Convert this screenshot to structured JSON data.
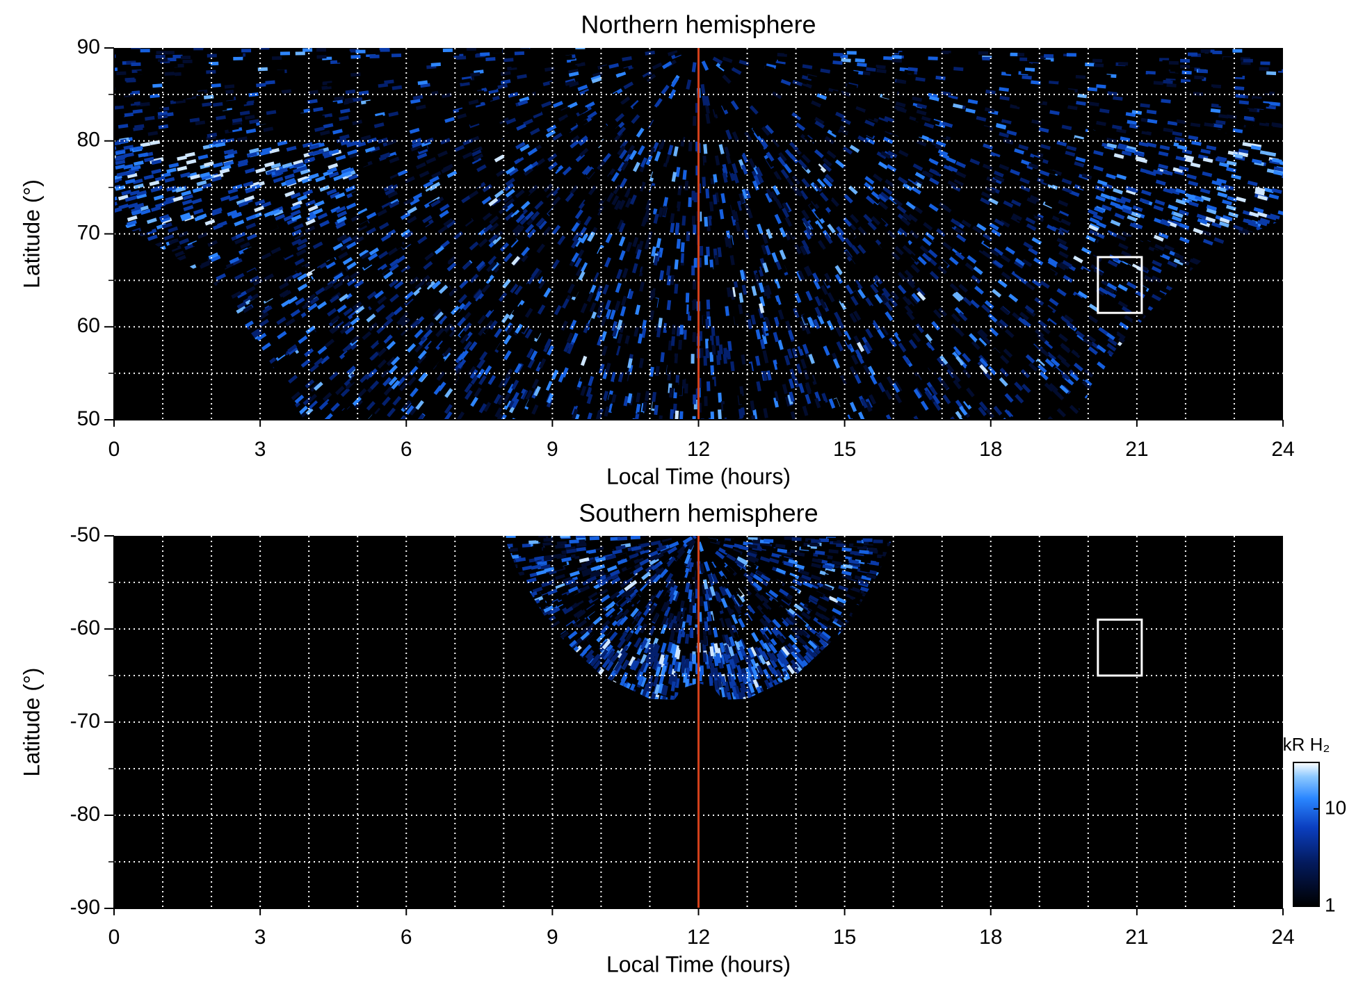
{
  "chart_data": [
    {
      "type": "heatmap",
      "title": "Northern hemisphere",
      "x_label": "Local Time (hours)",
      "y_label": "Latitude (°)",
      "xlim": [
        0,
        24
      ],
      "xticks": [
        0,
        3,
        6,
        9,
        12,
        15,
        18,
        21,
        24
      ],
      "ylim": [
        50,
        90
      ],
      "yticks": [
        50,
        60,
        70,
        80,
        90
      ],
      "xgrid": [
        1,
        2,
        3,
        4,
        5,
        6,
        7,
        8,
        9,
        10,
        11,
        12,
        13,
        14,
        15,
        16,
        17,
        18,
        19,
        20,
        21,
        22,
        23
      ],
      "ygrid": [
        55,
        60,
        65,
        70,
        75,
        80,
        85
      ],
      "grid_color": "#ffffff",
      "reference_line": {
        "x": 12,
        "color": "#d2401a"
      },
      "box": {
        "xlim": [
          20.2,
          21.1
        ],
        "ylim": [
          61.5,
          67.5
        ],
        "color": "#ffffff"
      }
    },
    {
      "type": "heatmap",
      "title": "Southern hemisphere",
      "x_label": "Local Time (hours)",
      "y_label": "Latitude (°)",
      "xlim": [
        0,
        24
      ],
      "xticks": [
        0,
        3,
        6,
        9,
        12,
        15,
        18,
        21,
        24
      ],
      "ylim": [
        -90,
        -50
      ],
      "yticks": [
        -90,
        -80,
        -70,
        -60,
        -50
      ],
      "xgrid": [
        1,
        2,
        3,
        4,
        5,
        6,
        7,
        8,
        9,
        10,
        11,
        12,
        13,
        14,
        15,
        16,
        17,
        18,
        19,
        20,
        21,
        22,
        23
      ],
      "ygrid": [
        -85,
        -80,
        -75,
        -70,
        -65,
        -60,
        -55
      ],
      "grid_color": "#ffffff",
      "reference_line": {
        "x": 12,
        "color": "#d2401a"
      },
      "box": {
        "xlim": [
          20.2,
          21.1
        ],
        "ylim": [
          -65,
          -59
        ],
        "color": "#ffffff"
      },
      "colorbar": {
        "label": "kR H₂",
        "scale": "log",
        "clim": [
          1,
          30
        ],
        "ticks": [
          1,
          10
        ]
      }
    }
  ]
}
